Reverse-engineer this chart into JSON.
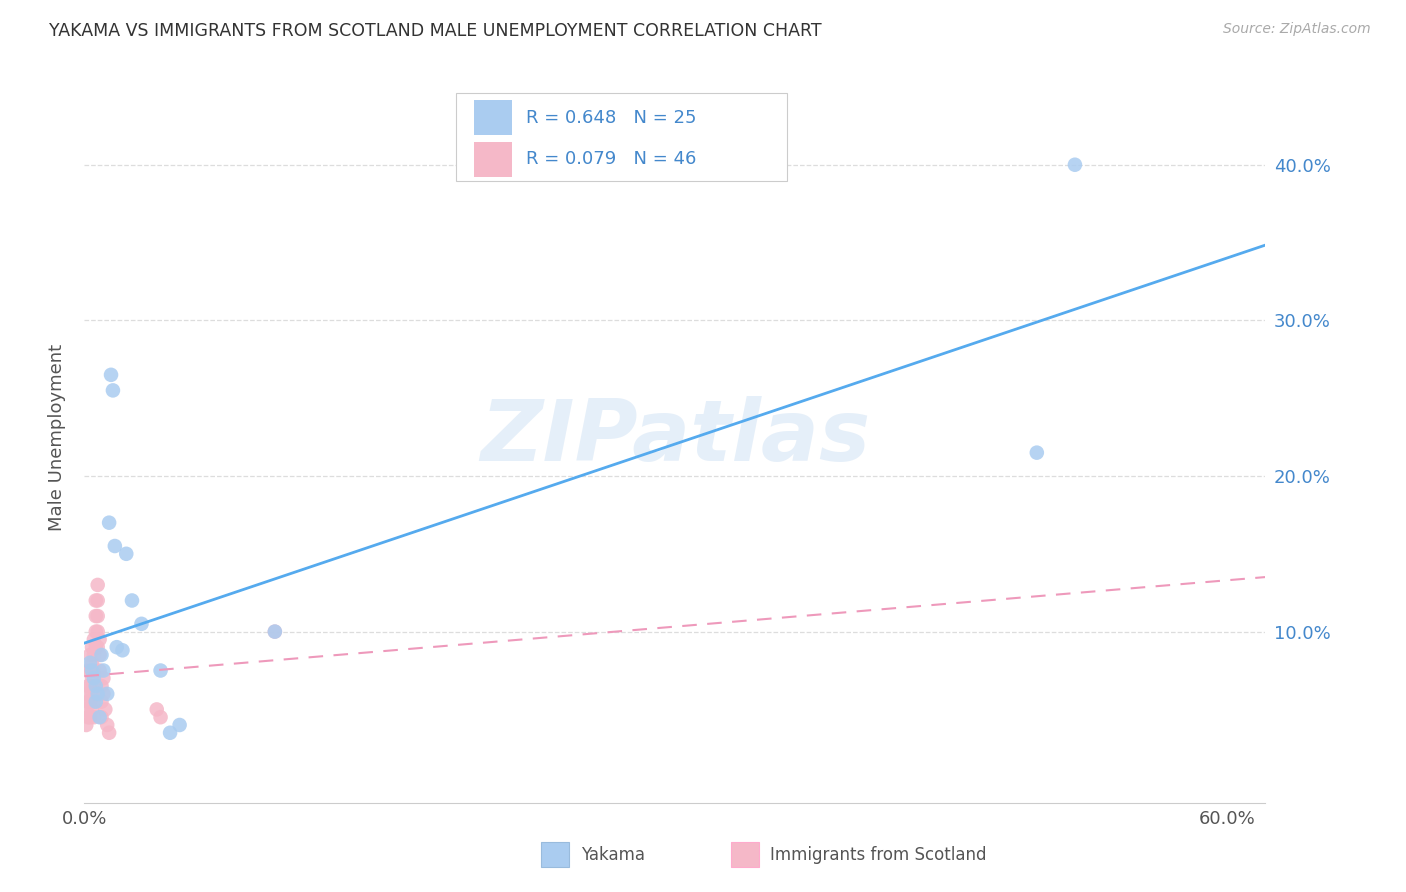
{
  "title": "YAKAMA VS IMMIGRANTS FROM SCOTLAND MALE UNEMPLOYMENT CORRELATION CHART",
  "source": "Source: ZipAtlas.com",
  "ylabel": "Male Unemployment",
  "xlim": [
    0.0,
    0.62
  ],
  "ylim": [
    -0.01,
    0.46
  ],
  "xtick_vals": [
    0.0,
    0.1,
    0.2,
    0.3,
    0.4,
    0.5,
    0.6
  ],
  "xtick_labels": [
    "0.0%",
    "",
    "",
    "",
    "",
    "",
    "60.0%"
  ],
  "ytick_vals": [
    0.0,
    0.1,
    0.2,
    0.3,
    0.4
  ],
  "ytick_labels_right": [
    "",
    "10.0%",
    "20.0%",
    "30.0%",
    "40.0%"
  ],
  "yakama_color": "#aaccf0",
  "scotland_color": "#f5b8c8",
  "yakama_line_color": "#55aaee",
  "scotland_line_color": "#ee99bb",
  "legend_text_color": "#4488cc",
  "legend_N_color": "#333333",
  "yakama_R": 0.648,
  "yakama_N": 25,
  "scotland_R": 0.079,
  "scotland_N": 46,
  "watermark": "ZIPatlas",
  "yakama_x": [
    0.003,
    0.004,
    0.005,
    0.006,
    0.006,
    0.007,
    0.008,
    0.009,
    0.01,
    0.012,
    0.013,
    0.014,
    0.015,
    0.016,
    0.017,
    0.02,
    0.022,
    0.025,
    0.03,
    0.04,
    0.045,
    0.05,
    0.1,
    0.5,
    0.52
  ],
  "yakama_y": [
    0.08,
    0.075,
    0.07,
    0.065,
    0.055,
    0.06,
    0.045,
    0.085,
    0.075,
    0.06,
    0.17,
    0.265,
    0.255,
    0.155,
    0.09,
    0.088,
    0.15,
    0.12,
    0.105,
    0.075,
    0.035,
    0.04,
    0.1,
    0.215,
    0.4
  ],
  "scotland_x": [
    0.001,
    0.001,
    0.001,
    0.002,
    0.002,
    0.002,
    0.002,
    0.003,
    0.003,
    0.003,
    0.003,
    0.003,
    0.004,
    0.004,
    0.004,
    0.004,
    0.004,
    0.005,
    0.005,
    0.005,
    0.005,
    0.005,
    0.005,
    0.006,
    0.006,
    0.006,
    0.006,
    0.007,
    0.007,
    0.007,
    0.007,
    0.007,
    0.008,
    0.008,
    0.008,
    0.009,
    0.009,
    0.009,
    0.01,
    0.01,
    0.011,
    0.012,
    0.013,
    0.038,
    0.04,
    0.1
  ],
  "scotland_y": [
    0.06,
    0.05,
    0.04,
    0.075,
    0.065,
    0.055,
    0.045,
    0.085,
    0.075,
    0.065,
    0.055,
    0.045,
    0.09,
    0.08,
    0.07,
    0.06,
    0.05,
    0.095,
    0.085,
    0.075,
    0.065,
    0.055,
    0.045,
    0.12,
    0.11,
    0.1,
    0.09,
    0.13,
    0.12,
    0.11,
    0.1,
    0.09,
    0.095,
    0.085,
    0.075,
    0.065,
    0.055,
    0.045,
    0.07,
    0.06,
    0.05,
    0.04,
    0.035,
    0.05,
    0.045,
    0.1
  ],
  "bg_color": "#ffffff",
  "grid_color": "#dddddd"
}
